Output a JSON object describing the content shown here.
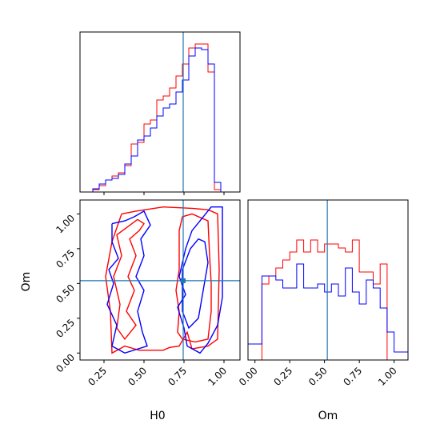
{
  "chart_data": {
    "type": "corner",
    "parameters": [
      "H0",
      "Om"
    ],
    "truth": {
      "H0": 0.745,
      "Om": 0.52
    },
    "colors": {
      "red_series": "#ff0000",
      "blue_series": "#0000ff",
      "truth_line": "#1f77b4"
    },
    "panels": [
      {
        "id": "h0-marginal",
        "type": "histogram",
        "xlim": [
          0.1,
          1.1
        ],
        "yticks": "none",
        "bin_edges": [
          0.1,
          0.14,
          0.18,
          0.22,
          0.26,
          0.3,
          0.34,
          0.38,
          0.42,
          0.46,
          0.5,
          0.54,
          0.58,
          0.62,
          0.66,
          0.7,
          0.74,
          0.78,
          0.82,
          0.86,
          0.9,
          0.94,
          0.98,
          1.02,
          1.06,
          1.1
        ],
        "series": [
          {
            "color": "red",
            "values": [
              0,
              0,
              0.3,
              0.8,
              1.5,
              2.0,
              2.4,
              3.3,
              6.0,
              6.2,
              8.5,
              9.0,
              11.5,
              12.0,
              13.0,
              14.5,
              16.0,
              18.0,
              18.5,
              18.5,
              15.0,
              0.3,
              0,
              0,
              0
            ]
          },
          {
            "color": "blue",
            "values": [
              0,
              0,
              0.4,
              1.0,
              1.5,
              1.7,
              2.2,
              3.5,
              4.5,
              6.5,
              7.0,
              8.0,
              9.5,
              10.5,
              11.0,
              12.5,
              14.0,
              17.0,
              18.0,
              17.8,
              16.0,
              1.2,
              0,
              0,
              0
            ]
          }
        ]
      },
      {
        "id": "om-marginal",
        "type": "histogram",
        "xlim": [
          -0.05,
          1.1
        ],
        "xticks": [
          "0.00",
          "0.25",
          "0.50",
          "0.75",
          "1.00"
        ],
        "xlabel": "Om",
        "bin_edges": [
          -0.05,
          0.0,
          0.05,
          0.1,
          0.15,
          0.2,
          0.25,
          0.3,
          0.35,
          0.4,
          0.45,
          0.5,
          0.55,
          0.6,
          0.65,
          0.7,
          0.75,
          0.8,
          0.85,
          0.9,
          0.95,
          1.0,
          1.05,
          1.1
        ],
        "series": [
          {
            "color": "red",
            "values": [
              0,
              0,
              9.5,
              10.5,
              11.5,
              12.5,
              13.5,
              15.0,
              13.5,
              15.0,
              13.5,
              14.5,
              14.5,
              14.0,
              13.5,
              15.0,
              11.0,
              11.0,
              9.5,
              12.0,
              0,
              0,
              0
            ]
          },
          {
            "color": "blue",
            "values": [
              2.0,
              2.0,
              10.5,
              10.5,
              10.0,
              9.0,
              9.0,
              12.0,
              9.0,
              9.0,
              9.5,
              8.5,
              9.5,
              8.0,
              11.5,
              8.5,
              7.0,
              10.0,
              9.0,
              6.5,
              3.5,
              1.0,
              1.0
            ]
          }
        ]
      },
      {
        "id": "joint-h0-om",
        "type": "contour",
        "xlim": [
          0.1,
          1.1
        ],
        "ylim": [
          -0.05,
          1.1
        ],
        "xticks": [
          "0.25",
          "0.50",
          "0.75",
          "1.00"
        ],
        "yticks": [
          "0.00",
          "0.25",
          "0.50",
          "0.75",
          "1.00"
        ],
        "xlabel": "H0",
        "ylabel": "Om",
        "contours": [
          {
            "color": "red",
            "points": [
              [
                0.36,
                1.0
              ],
              [
                0.45,
                1.02
              ],
              [
                0.62,
                1.05
              ],
              [
                0.8,
                1.04
              ],
              [
                0.9,
                1.03
              ],
              [
                0.96,
                1.0
              ],
              [
                0.97,
                0.6
              ],
              [
                0.96,
                0.1
              ],
              [
                0.9,
                0.05
              ],
              [
                0.8,
                0.03
              ],
              [
                0.77,
                0.15
              ],
              [
                0.72,
                0.05
              ],
              [
                0.66,
                0.04
              ],
              [
                0.62,
                0.02
              ],
              [
                0.47,
                0.02
              ],
              [
                0.38,
                0.05
              ],
              [
                0.3,
                0.0
              ],
              [
                0.29,
                0.3
              ],
              [
                0.26,
                0.55
              ],
              [
                0.3,
                0.8
              ],
              [
                0.36,
                1.0
              ]
            ]
          },
          {
            "color": "red",
            "points": [
              [
                0.46,
                0.96
              ],
              [
                0.5,
                0.93
              ],
              [
                0.47,
                0.88
              ],
              [
                0.41,
                0.82
              ],
              [
                0.45,
                0.7
              ],
              [
                0.4,
                0.55
              ],
              [
                0.44,
                0.45
              ],
              [
                0.39,
                0.3
              ],
              [
                0.45,
                0.2
              ],
              [
                0.38,
                0.1
              ],
              [
                0.33,
                0.18
              ],
              [
                0.35,
                0.35
              ],
              [
                0.31,
                0.55
              ],
              [
                0.36,
                0.7
              ],
              [
                0.33,
                0.85
              ],
              [
                0.46,
                0.96
              ]
            ]
          },
          {
            "color": "red",
            "points": [
              [
                0.72,
                0.88
              ],
              [
                0.72,
                0.6
              ],
              [
                0.7,
                0.45
              ],
              [
                0.72,
                0.3
              ],
              [
                0.71,
                0.15
              ],
              [
                0.74,
                0.1
              ],
              [
                0.82,
                0.08
              ],
              [
                0.9,
                0.1
              ],
              [
                0.92,
                0.3
              ],
              [
                0.92,
                0.5
              ],
              [
                0.91,
                0.7
              ],
              [
                0.9,
                0.95
              ],
              [
                0.8,
                1.0
              ],
              [
                0.74,
                0.98
              ],
              [
                0.72,
                0.88
              ]
            ]
          },
          {
            "color": "blue",
            "points": [
              [
                0.3,
                0.93
              ],
              [
                0.38,
                0.95
              ],
              [
                0.44,
                0.98
              ],
              [
                0.5,
                1.02
              ],
              [
                0.54,
                0.92
              ],
              [
                0.48,
                0.82
              ],
              [
                0.5,
                0.7
              ],
              [
                0.45,
                0.55
              ],
              [
                0.5,
                0.45
              ],
              [
                0.46,
                0.3
              ],
              [
                0.49,
                0.15
              ],
              [
                0.52,
                0.05
              ],
              [
                0.38,
                0.0
              ],
              [
                0.3,
                0.05
              ],
              [
                0.33,
                0.2
              ],
              [
                0.27,
                0.35
              ],
              [
                0.31,
                0.5
              ],
              [
                0.28,
                0.6
              ],
              [
                0.34,
                0.68
              ],
              [
                0.3,
                0.8
              ],
              [
                0.3,
                0.93
              ]
            ]
          },
          {
            "color": "blue",
            "points": [
              [
                0.72,
                0.55
              ],
              [
                0.76,
                0.42
              ],
              [
                0.71,
                0.33
              ],
              [
                0.75,
                0.18
              ],
              [
                0.77,
                0.05
              ],
              [
                0.85,
                0.0
              ],
              [
                0.9,
                0.07
              ],
              [
                0.96,
                0.2
              ],
              [
                0.99,
                0.4
              ],
              [
                0.99,
                0.7
              ],
              [
                0.99,
                1.05
              ],
              [
                0.92,
                1.05
              ],
              [
                0.85,
                0.95
              ],
              [
                0.8,
                0.88
              ],
              [
                0.76,
                0.75
              ],
              [
                0.72,
                0.55
              ]
            ]
          },
          {
            "color": "blue",
            "points": [
              [
                0.74,
                0.6
              ],
              [
                0.79,
                0.75
              ],
              [
                0.84,
                0.82
              ],
              [
                0.88,
                0.8
              ],
              [
                0.9,
                0.65
              ],
              [
                0.87,
                0.45
              ],
              [
                0.84,
                0.25
              ],
              [
                0.78,
                0.18
              ],
              [
                0.74,
                0.3
              ],
              [
                0.74,
                0.6
              ]
            ]
          }
        ]
      }
    ]
  }
}
